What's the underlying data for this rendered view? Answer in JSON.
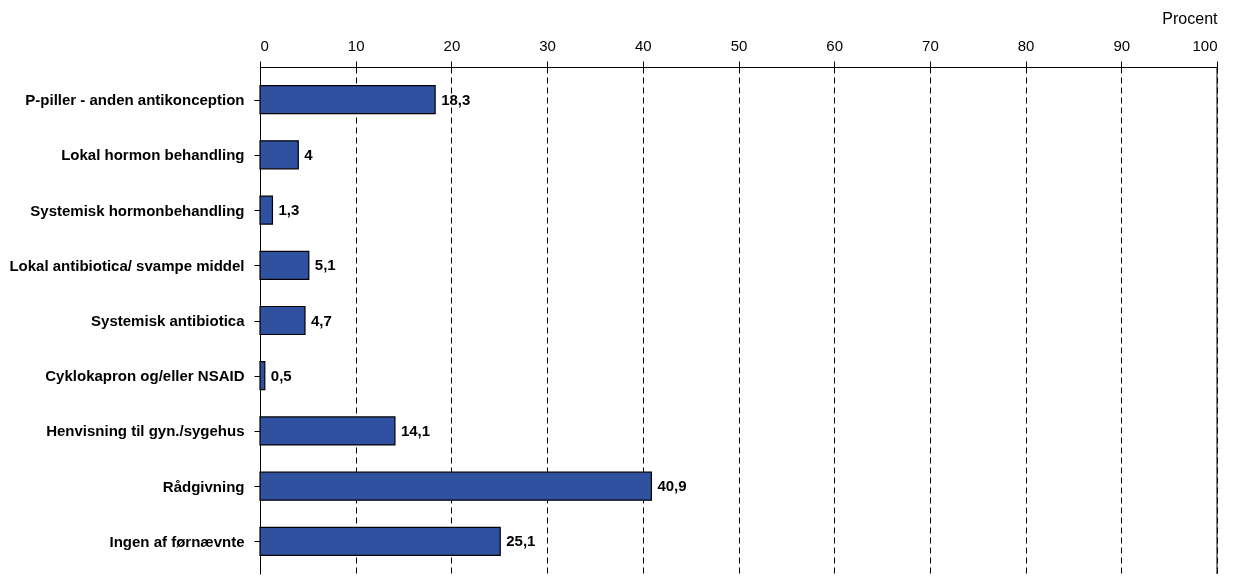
{
  "chart_data": {
    "type": "bar",
    "orientation": "horizontal",
    "xlabel": "Procent",
    "categories": [
      "P-piller - anden antikonception",
      "Lokal hormon behandling",
      "Systemisk hormonbehandling",
      "Lokal antibiotica/ svampe middel",
      "Systemisk antibiotica",
      "Cyklokapron og/eller NSAID",
      "Henvisning til gyn./sygehus",
      "Rådgivning",
      "Ingen af førnævnte"
    ],
    "values": [
      18.3,
      4,
      1.3,
      5.1,
      4.7,
      0.5,
      14.1,
      40.9,
      25.1
    ],
    "value_labels": [
      "18,3",
      "4",
      "1,3",
      "5,1",
      "4,7",
      "0,5",
      "14,1",
      "40,9",
      "25,1"
    ],
    "color": "#3050a0",
    "xlim": [
      0,
      100
    ],
    "xticks": [
      0,
      10,
      20,
      30,
      40,
      50,
      60,
      70,
      80,
      90,
      100
    ],
    "grid": "x"
  }
}
